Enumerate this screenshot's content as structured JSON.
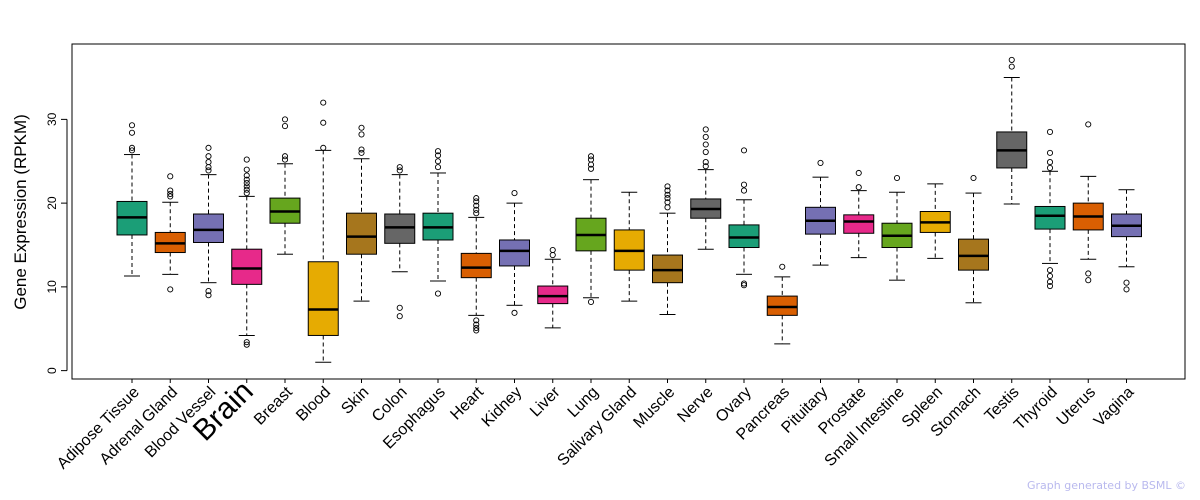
{
  "chart_data": {
    "type": "box",
    "title": "",
    "xlabel": "",
    "ylabel": "Gene Expression (RPKM)",
    "ylim": [
      -1,
      39
    ],
    "yticks": [
      0,
      10,
      20,
      30
    ],
    "highlight": "Brain",
    "highlight_color": "#ff0000",
    "categories": [
      {
        "name": "Adipose Tissue",
        "color": "#1b9e77",
        "min": 11.3,
        "q1": 16.2,
        "median": 18.3,
        "q3": 20.2,
        "max": 25.8,
        "outliers": [
          26.3,
          26.6,
          28.4,
          29.3
        ]
      },
      {
        "name": "Adrenal Gland",
        "color": "#d95f02",
        "min": 11.5,
        "q1": 14.1,
        "median": 15.2,
        "q3": 16.5,
        "max": 20.1,
        "outliers": [
          9.7,
          20.8,
          21.1,
          21.5,
          23.2
        ]
      },
      {
        "name": "Blood Vessel",
        "color": "#7570b3",
        "min": 10.5,
        "q1": 15.3,
        "median": 16.8,
        "q3": 18.7,
        "max": 23.4,
        "outliers": [
          9.0,
          9.5,
          23.9,
          24.3,
          24.9,
          25.6,
          26.6
        ]
      },
      {
        "name": "Brain",
        "color": "#e7298a",
        "min": 4.2,
        "q1": 10.3,
        "median": 12.2,
        "q3": 14.5,
        "max": 20.8,
        "outliers": [
          3.1,
          3.4,
          21.2,
          21.6,
          22.0,
          22.4,
          22.8,
          23.3,
          24.0,
          25.2
        ]
      },
      {
        "name": "Breast",
        "color": "#66a61e",
        "min": 13.9,
        "q1": 17.6,
        "median": 19.0,
        "q3": 20.6,
        "max": 24.7,
        "outliers": [
          25.2,
          25.6,
          29.2,
          30.0
        ]
      },
      {
        "name": "Blood",
        "color": "#e6ab02",
        "min": 1.0,
        "q1": 4.2,
        "median": 7.3,
        "q3": 13.0,
        "max": 26.3,
        "outliers": [
          26.6,
          29.6,
          32.0
        ]
      },
      {
        "name": "Skin",
        "color": "#a6761d",
        "min": 8.3,
        "q1": 13.9,
        "median": 16.0,
        "q3": 18.8,
        "max": 25.3,
        "outliers": [
          26.0,
          26.4,
          28.2,
          29.0
        ]
      },
      {
        "name": "Colon",
        "color": "#666666",
        "min": 11.8,
        "q1": 15.2,
        "median": 17.1,
        "q3": 18.7,
        "max": 23.4,
        "outliers": [
          6.5,
          7.5,
          23.9,
          24.3
        ]
      },
      {
        "name": "Esophagus",
        "color": "#1b9e77",
        "min": 10.7,
        "q1": 15.6,
        "median": 17.1,
        "q3": 18.8,
        "max": 23.6,
        "outliers": [
          9.2,
          24.3,
          25.0,
          25.7,
          26.2
        ]
      },
      {
        "name": "Heart",
        "color": "#d95f02",
        "min": 6.6,
        "q1": 11.1,
        "median": 12.3,
        "q3": 14.0,
        "max": 18.3,
        "outliers": [
          4.8,
          5.1,
          5.5,
          6.0,
          18.8,
          19.2,
          19.7,
          20.2,
          20.6
        ]
      },
      {
        "name": "Kidney",
        "color": "#7570b3",
        "min": 7.8,
        "q1": 12.5,
        "median": 14.3,
        "q3": 15.6,
        "max": 20.0,
        "outliers": [
          6.9,
          21.2
        ]
      },
      {
        "name": "Liver",
        "color": "#e7298a",
        "min": 5.1,
        "q1": 8.0,
        "median": 8.9,
        "q3": 10.1,
        "max": 13.3,
        "outliers": [
          13.8,
          14.4
        ]
      },
      {
        "name": "Lung",
        "color": "#66a61e",
        "min": 8.7,
        "q1": 14.3,
        "median": 16.2,
        "q3": 18.2,
        "max": 22.8,
        "outliers": [
          8.2,
          24.1,
          24.6,
          25.2,
          25.6
        ]
      },
      {
        "name": "Salivary Gland",
        "color": "#e6ab02",
        "min": 8.3,
        "q1": 12.0,
        "median": 14.3,
        "q3": 16.8,
        "max": 21.3,
        "outliers": []
      },
      {
        "name": "Muscle",
        "color": "#a6761d",
        "min": 6.7,
        "q1": 10.5,
        "median": 12.0,
        "q3": 13.8,
        "max": 18.8,
        "outliers": [
          19.5,
          20.1,
          20.6,
          21.0,
          21.5,
          22.0
        ]
      },
      {
        "name": "Nerve",
        "color": "#666666",
        "min": 14.5,
        "q1": 18.2,
        "median": 19.3,
        "q3": 20.5,
        "max": 24.0,
        "outliers": [
          24.4,
          24.9,
          26.1,
          27.0,
          27.9,
          28.8
        ]
      },
      {
        "name": "Ovary",
        "color": "#1b9e77",
        "min": 11.5,
        "q1": 14.7,
        "median": 15.9,
        "q3": 17.4,
        "max": 20.4,
        "outliers": [
          10.2,
          10.4,
          21.5,
          22.2,
          26.3
        ]
      },
      {
        "name": "Pancreas",
        "color": "#d95f02",
        "min": 3.2,
        "q1": 6.6,
        "median": 7.6,
        "q3": 8.9,
        "max": 11.2,
        "outliers": [
          12.4
        ]
      },
      {
        "name": "Pituitary",
        "color": "#7570b3",
        "min": 12.6,
        "q1": 16.3,
        "median": 17.9,
        "q3": 19.5,
        "max": 23.1,
        "outliers": [
          24.8
        ]
      },
      {
        "name": "Prostate",
        "color": "#e7298a",
        "min": 13.5,
        "q1": 16.4,
        "median": 17.8,
        "q3": 18.6,
        "max": 21.5,
        "outliers": [
          21.9,
          23.6
        ]
      },
      {
        "name": "Small Intestine",
        "color": "#66a61e",
        "min": 10.8,
        "q1": 14.7,
        "median": 16.1,
        "q3": 17.6,
        "max": 21.3,
        "outliers": [
          23.0
        ]
      },
      {
        "name": "Spleen",
        "color": "#e6ab02",
        "min": 13.4,
        "q1": 16.5,
        "median": 17.7,
        "q3": 19.0,
        "max": 22.3,
        "outliers": []
      },
      {
        "name": "Stomach",
        "color": "#a6761d",
        "min": 8.1,
        "q1": 12.0,
        "median": 13.7,
        "q3": 15.7,
        "max": 21.2,
        "outliers": [
          23.0
        ]
      },
      {
        "name": "Testis",
        "color": "#666666",
        "min": 19.9,
        "q1": 24.2,
        "median": 26.3,
        "q3": 28.5,
        "max": 35.0,
        "outliers": [
          36.3,
          37.1
        ]
      },
      {
        "name": "Thyroid",
        "color": "#1b9e77",
        "min": 12.8,
        "q1": 16.9,
        "median": 18.5,
        "q3": 19.6,
        "max": 23.8,
        "outliers": [
          10.1,
          10.6,
          11.3,
          12.0,
          24.2,
          24.9,
          26.0,
          28.5
        ]
      },
      {
        "name": "Uterus",
        "color": "#d95f02",
        "min": 13.3,
        "q1": 16.8,
        "median": 18.4,
        "q3": 20.0,
        "max": 23.2,
        "outliers": [
          10.8,
          11.6,
          29.4
        ]
      },
      {
        "name": "Vagina",
        "color": "#7570b3",
        "min": 12.4,
        "q1": 16.0,
        "median": 17.3,
        "q3": 18.7,
        "max": 21.6,
        "outliers": [
          9.7,
          10.5
        ]
      }
    ]
  },
  "footer": {
    "credit": "Graph generated by BSML ©"
  }
}
